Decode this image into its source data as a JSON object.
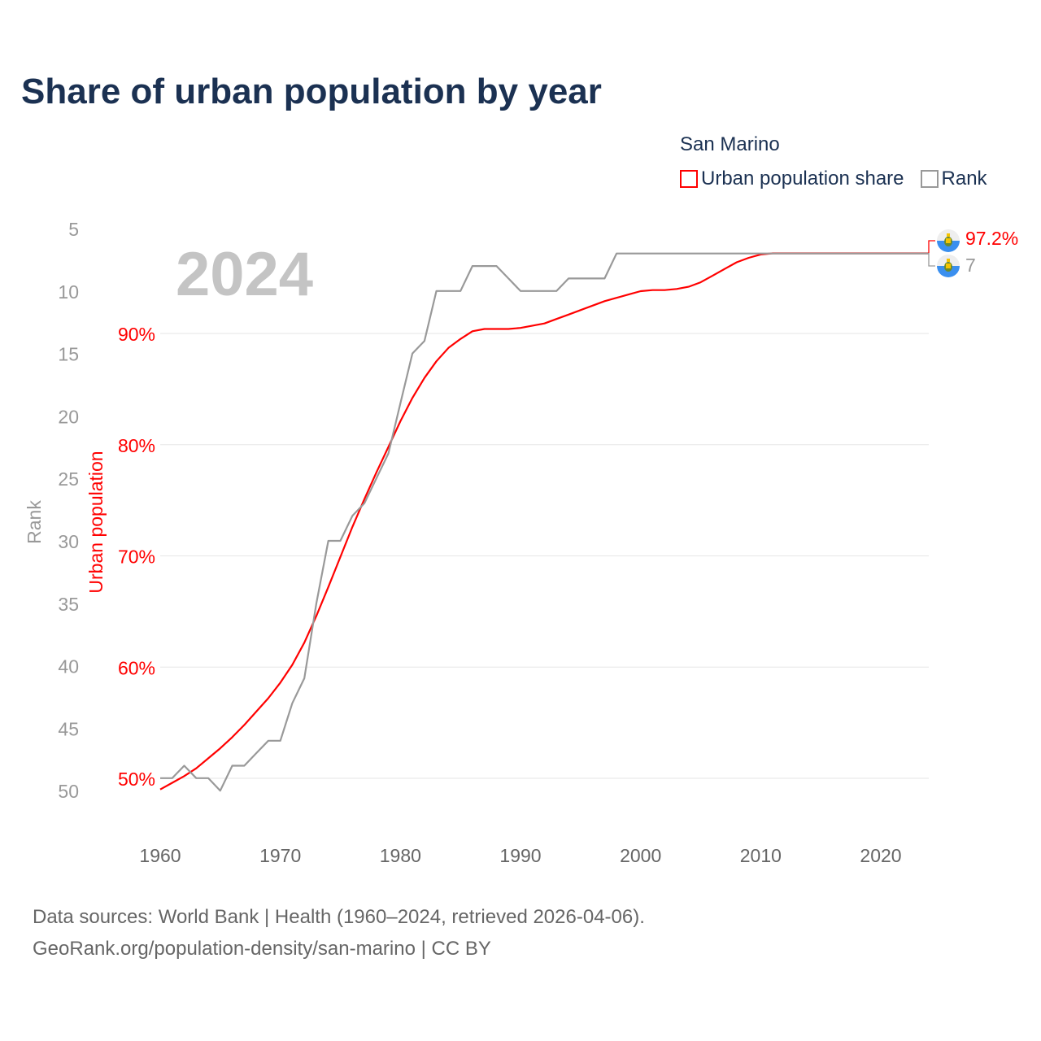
{
  "title": "Share of urban population by year",
  "legend": {
    "title": "San Marino",
    "items": [
      {
        "label": "Urban population share",
        "color": "#ff0000"
      },
      {
        "label": "Rank",
        "color": "#999999"
      }
    ]
  },
  "footer": {
    "line1": "Data sources: World Bank | Health (1960–2024, retrieved 2026-04-06).",
    "line2": "GeoRank.org/population-density/san-marino | CC BY"
  },
  "chart_data": {
    "type": "line",
    "title": "Share of urban population by year",
    "year_label": "2024",
    "xlabel": "",
    "ylabel_left": "Rank",
    "ylabel_right": "Urban population",
    "xlim": [
      1960,
      2024
    ],
    "x_ticks": [
      "1960",
      "1970",
      "1980",
      "1990",
      "2000",
      "2010",
      "2020"
    ],
    "rank_ylim": [
      5,
      50
    ],
    "rank_ticks": [
      "5",
      "10",
      "15",
      "20",
      "25",
      "30",
      "35",
      "40",
      "45",
      "50"
    ],
    "urban_ylim": [
      50,
      90
    ],
    "urban_ticks": [
      "50%",
      "60%",
      "70%",
      "80%",
      "90%"
    ],
    "end_labels": {
      "urban": "97.2%",
      "rank": "7"
    },
    "x": [
      1960,
      1961,
      1962,
      1963,
      1964,
      1965,
      1966,
      1967,
      1968,
      1969,
      1970,
      1971,
      1972,
      1973,
      1974,
      1975,
      1976,
      1977,
      1978,
      1979,
      1980,
      1981,
      1982,
      1983,
      1984,
      1985,
      1986,
      1987,
      1988,
      1989,
      1990,
      1991,
      1992,
      1993,
      1994,
      1995,
      1996,
      1997,
      1998,
      1999,
      2000,
      2001,
      2002,
      2003,
      2004,
      2005,
      2006,
      2007,
      2008,
      2009,
      2010,
      2011,
      2012,
      2013,
      2014,
      2015,
      2016,
      2017,
      2018,
      2019,
      2020,
      2021,
      2022,
      2023,
      2024
    ],
    "series": [
      {
        "name": "Urban population share",
        "color": "#ff0000",
        "axis": "urban",
        "values": [
          49.0,
          49.6,
          50.2,
          50.9,
          51.8,
          52.7,
          53.7,
          54.8,
          56.0,
          57.2,
          58.6,
          60.2,
          62.2,
          64.6,
          67.2,
          69.9,
          72.6,
          75.1,
          77.5,
          79.8,
          82.1,
          84.2,
          86.0,
          87.5,
          88.7,
          89.5,
          90.2,
          90.4,
          90.4,
          90.4,
          90.5,
          90.7,
          90.9,
          91.3,
          91.7,
          92.1,
          92.5,
          92.9,
          93.2,
          93.5,
          93.8,
          93.9,
          93.9,
          94.0,
          94.2,
          94.6,
          95.2,
          95.8,
          96.4,
          96.8,
          97.1,
          97.2,
          97.2,
          97.2,
          97.2,
          97.2,
          97.2,
          97.2,
          97.2,
          97.2,
          97.2,
          97.2,
          97.2,
          97.2,
          97.2
        ]
      },
      {
        "name": "Rank",
        "color": "#999999",
        "axis": "rank",
        "values": [
          49,
          49,
          48,
          49,
          49,
          50,
          48,
          48,
          47,
          46,
          46,
          43,
          41,
          35,
          30,
          30,
          28,
          27,
          25,
          23,
          19,
          15,
          14,
          10,
          10,
          10,
          8,
          8,
          8,
          9,
          10,
          10,
          10,
          10,
          9,
          9,
          9,
          9,
          7,
          7,
          7,
          7,
          7,
          7,
          7,
          7,
          7,
          7,
          7,
          7,
          7,
          7,
          7,
          7,
          7,
          7,
          7,
          7,
          7,
          7,
          7,
          7,
          7,
          7,
          7
        ]
      }
    ]
  }
}
